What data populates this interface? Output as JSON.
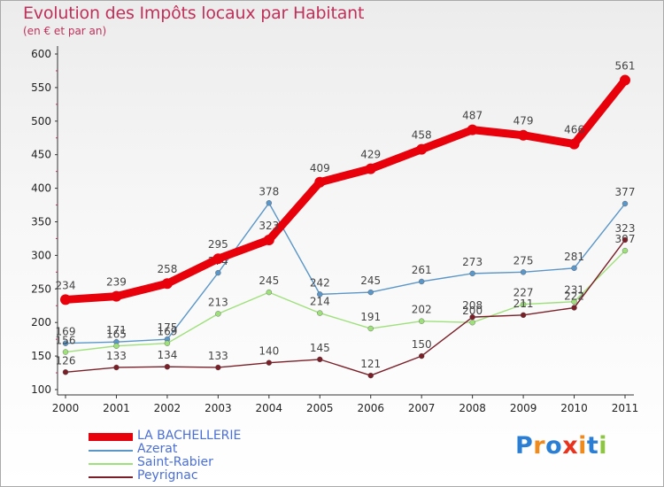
{
  "title": "Evolution des Impôts locaux par Habitant",
  "subtitle": "(en € et par an)",
  "logo_text": "Proxiti",
  "chart_data": {
    "type": "line",
    "title": "Evolution des Impôts locaux par Habitant",
    "subtitle": "(en € et par an)",
    "x": [
      "2000",
      "2001",
      "2002",
      "2003",
      "2004",
      "2005",
      "2006",
      "2007",
      "2008",
      "2009",
      "2010",
      "2011"
    ],
    "ylim": [
      100,
      600
    ],
    "yticks": [
      100,
      150,
      200,
      250,
      300,
      350,
      400,
      450,
      500,
      550,
      600
    ],
    "grid": false,
    "legend": "bottom-left",
    "series": [
      {
        "name": "LA BACHELLERIE",
        "color": "#e8000b",
        "width": 9,
        "values": [
          234,
          239,
          258,
          295,
          323,
          409,
          429,
          458,
          487,
          479,
          466,
          561
        ]
      },
      {
        "name": "Azerat",
        "color": "#5a96c8",
        "width": 1.4,
        "values": [
          169,
          171,
          175,
          274,
          378,
          242,
          245,
          261,
          273,
          275,
          281,
          377
        ]
      },
      {
        "name": "Saint-Rabier",
        "color": "#9ee07a",
        "width": 1.4,
        "values": [
          156,
          165,
          169,
          213,
          245,
          214,
          191,
          202,
          200,
          227,
          231,
          307
        ]
      },
      {
        "name": "Peyrignac",
        "color": "#7a1f28",
        "width": 1.4,
        "values": [
          126,
          133,
          134,
          133,
          140,
          145,
          121,
          150,
          208,
          211,
          222,
          323
        ]
      }
    ]
  }
}
